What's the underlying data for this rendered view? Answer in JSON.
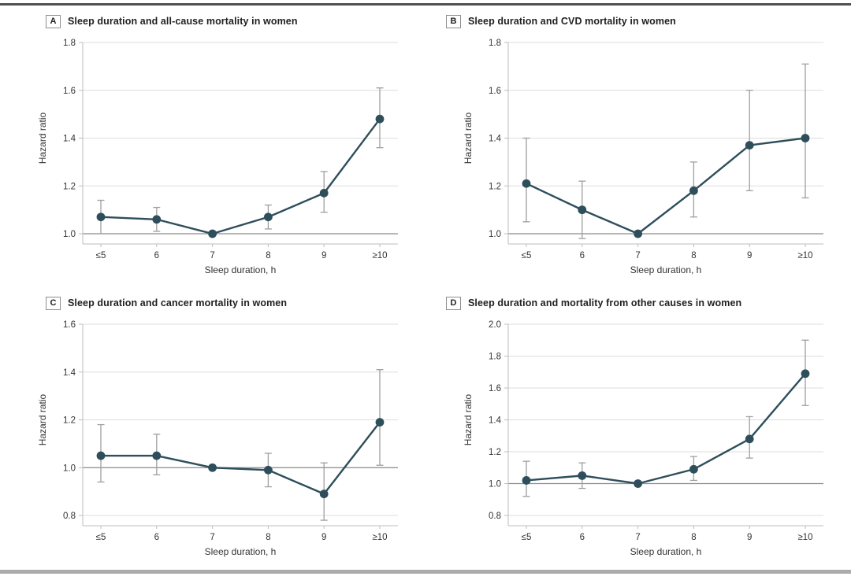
{
  "figure": {
    "background": "#ffffff",
    "top_rule_color": "#4f4f4f",
    "bottom_rule_color": "#ababab"
  },
  "colors": {
    "accent": "#2e4e5c",
    "error_bar": "#9f9f9f",
    "gridline": "#dddddd",
    "reference_line": "#8c8c8c",
    "axis": "#bdbdbd",
    "tick_text": "#333333",
    "title_text": "#1f1f1f",
    "label_box_border": "#8f8f8f"
  },
  "chart_data": [
    {
      "type": "line",
      "label": "A",
      "title": "Sleep duration and all-cause mortality in women",
      "xlabel": "Sleep duration, h",
      "ylabel": "Hazard ratio",
      "categories": [
        "≤5",
        "6",
        "7",
        "8",
        "9",
        "≥10"
      ],
      "yticks": [
        1.0,
        1.2,
        1.4,
        1.6,
        1.8
      ],
      "ylim": [
        0.96,
        1.8
      ],
      "reference_line": 1.0,
      "grid": true,
      "legend": "none",
      "series": [
        {
          "name": "Hazard ratio (95% CI)",
          "values": [
            1.07,
            1.06,
            1.0,
            1.07,
            1.17,
            1.48
          ],
          "ci_low": [
            1.0,
            1.01,
            null,
            1.02,
            1.09,
            1.36
          ],
          "ci_high": [
            1.14,
            1.11,
            null,
            1.12,
            1.26,
            1.61
          ]
        }
      ]
    },
    {
      "type": "line",
      "label": "B",
      "title": "Sleep duration and CVD mortality in women",
      "xlabel": "Sleep duration, h",
      "ylabel": "Hazard ratio",
      "categories": [
        "≤5",
        "6",
        "7",
        "8",
        "9",
        "≥10"
      ],
      "yticks": [
        1.0,
        1.2,
        1.4,
        1.6,
        1.8
      ],
      "ylim": [
        0.96,
        1.8
      ],
      "reference_line": 1.0,
      "grid": true,
      "legend": "none",
      "series": [
        {
          "name": "Hazard ratio (95% CI)",
          "values": [
            1.21,
            1.1,
            1.0,
            1.18,
            1.37,
            1.4
          ],
          "ci_low": [
            1.05,
            0.98,
            null,
            1.07,
            1.18,
            1.15
          ],
          "ci_high": [
            1.4,
            1.22,
            null,
            1.3,
            1.6,
            1.71
          ]
        }
      ]
    },
    {
      "type": "line",
      "label": "C",
      "title": "Sleep duration and cancer mortality in women",
      "xlabel": "Sleep duration, h",
      "ylabel": "Hazard ratio",
      "categories": [
        "≤5",
        "6",
        "7",
        "8",
        "9",
        "≥10"
      ],
      "yticks": [
        0.8,
        1.0,
        1.2,
        1.4,
        1.6
      ],
      "ylim": [
        0.76,
        1.6
      ],
      "reference_line": 1.0,
      "grid": true,
      "legend": "none",
      "series": [
        {
          "name": "Hazard ratio (95% CI)",
          "values": [
            1.05,
            1.05,
            1.0,
            0.99,
            0.89,
            1.19
          ],
          "ci_low": [
            0.94,
            0.97,
            null,
            0.92,
            0.78,
            1.01
          ],
          "ci_high": [
            1.18,
            1.14,
            null,
            1.06,
            1.02,
            1.41
          ]
        }
      ]
    },
    {
      "type": "line",
      "label": "D",
      "title": "Sleep duration and mortality from other causes in women",
      "xlabel": "Sleep duration, h",
      "ylabel": "Hazard ratio",
      "categories": [
        "≤5",
        "6",
        "7",
        "8",
        "9",
        "≥10"
      ],
      "yticks": [
        0.8,
        1.0,
        1.2,
        1.4,
        1.6,
        1.8,
        2.0
      ],
      "ylim": [
        0.73,
        2.0
      ],
      "reference_line": 1.0,
      "grid": true,
      "legend": "none",
      "series": [
        {
          "name": "Hazard ratio (95% CI)",
          "values": [
            1.02,
            1.05,
            1.0,
            1.09,
            1.28,
            1.69
          ],
          "ci_low": [
            0.92,
            0.97,
            null,
            1.02,
            1.16,
            1.49
          ],
          "ci_high": [
            1.14,
            1.13,
            null,
            1.17,
            1.42,
            1.9
          ]
        }
      ]
    }
  ]
}
